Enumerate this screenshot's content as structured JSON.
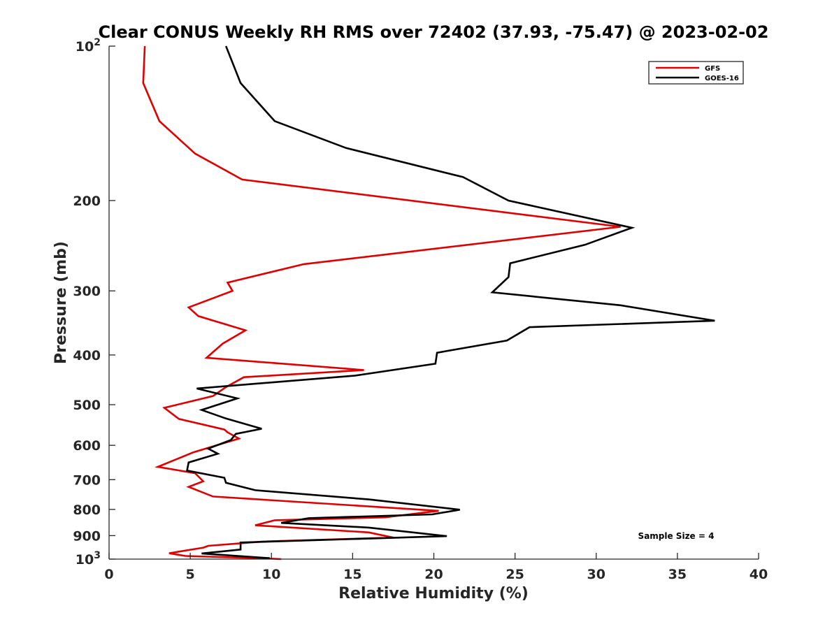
{
  "chart_data": {
    "type": "line",
    "title": "Clear CONUS Weekly RH RMS over 72402 (37.93, -75.47) @ 2023-02-02",
    "xlabel": "Relative Humidity (%)",
    "ylabel": "Pressure (mb)",
    "xlim": [
      0,
      40
    ],
    "ylim": [
      100,
      1000
    ],
    "yscale": "log",
    "y_reversed": true,
    "x_ticks": [
      0,
      5,
      10,
      15,
      20,
      25,
      30,
      35,
      40
    ],
    "x_tick_labels": [
      "0",
      "5",
      "10",
      "15",
      "20",
      "25",
      "30",
      "35",
      "40"
    ],
    "y_ticks": [
      200,
      300,
      400,
      500,
      600,
      700,
      800,
      900
    ],
    "y_tick_labels": [
      "200",
      "300",
      "400",
      "500",
      "600",
      "700",
      "800",
      "900"
    ],
    "y_top_label": {
      "base": "10",
      "exp": "2"
    },
    "y_bottom_label": {
      "base": "10",
      "exp": "3"
    },
    "grid": false,
    "legend_position": "top-right",
    "annotation": "Sample Size = 4",
    "series": [
      {
        "name": "GFS",
        "color": "#e00000",
        "x": [
          2.2,
          2.1,
          3.1,
          5.3,
          8.2,
          31.5,
          12.0,
          7.3,
          7.6,
          4.9,
          5.5,
          8.4,
          7.0,
          6.0,
          15.7,
          8.3,
          7.2,
          6.4,
          3.4,
          4.3,
          7.1,
          7.3,
          8.0,
          5.2,
          3.0,
          5.3,
          5.8,
          4.9,
          6.4,
          20.3,
          17.0,
          10.2,
          9.0,
          16.0,
          17.5,
          9.5,
          6.1,
          5.8,
          3.7,
          4.7,
          9.7,
          10.6
        ],
        "y": [
          100,
          118,
          140,
          162,
          182,
          225,
          266,
          289,
          300,
          323,
          336,
          358,
          380,
          405,
          428,
          442,
          462,
          481,
          507,
          533,
          559,
          566,
          582,
          619,
          661,
          680,
          705,
          723,
          755,
          805,
          829,
          840,
          859,
          887,
          908,
          924,
          942,
          950,
          974,
          986,
          997,
          1000
        ]
      },
      {
        "name": "GOES-16",
        "color": "#000000",
        "x": [
          7.2,
          8.1,
          10.2,
          14.6,
          21.8,
          24.6,
          32.2,
          29.3,
          24.7,
          24.6,
          23.6,
          31.5,
          37.3,
          25.9,
          24.5,
          20.2,
          20.1,
          15.1,
          5.4,
          7.9,
          5.7,
          7.2,
          9.4,
          7.8,
          7.5,
          6.1,
          6.7,
          4.9,
          4.8,
          7.1,
          7.2,
          9.0,
          16.0,
          21.6,
          19.9,
          12.3,
          10.6,
          16.0,
          20.8,
          8.1,
          8.1,
          5.7,
          9.9
        ],
        "y": [
          100,
          118,
          140,
          158,
          180,
          200,
          226,
          244,
          265,
          282,
          302,
          320,
          343,
          353,
          375,
          396,
          416,
          439,
          465,
          486,
          512,
          532,
          557,
          570,
          586,
          609,
          623,
          648,
          672,
          694,
          710,
          734,
          765,
          801,
          818,
          832,
          850,
          868,
          902,
          928,
          958,
          975,
          996
        ]
      }
    ]
  }
}
